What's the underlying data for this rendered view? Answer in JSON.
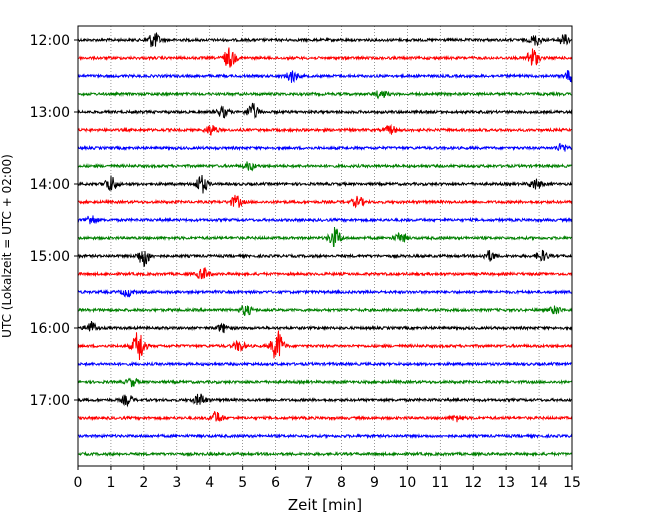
{
  "chart_data": {
    "type": "line",
    "xlabel": "Zeit  [min]",
    "ylabel": "UTC (Lokalzeit = UTC + 02:00)",
    "xlim": [
      0,
      15
    ],
    "x_ticks": [
      "0",
      "1",
      "2",
      "3",
      "4",
      "5",
      "6",
      "7",
      "8",
      "9",
      "10",
      "11",
      "12",
      "13",
      "14",
      "15"
    ],
    "y_tick_labels": [
      "12:00",
      "13:00",
      "14:00",
      "15:00",
      "16:00",
      "17:00"
    ],
    "grid": "vertical dotted at each minute",
    "trace_colors": [
      "#000000",
      "#ff0000",
      "#0000ff",
      "#008000"
    ],
    "traces": [
      {
        "start": "12:00",
        "bursts": [
          [
            2.3,
            0.8
          ],
          [
            13.9,
            0.5
          ],
          [
            14.75,
            0.5
          ]
        ]
      },
      {
        "start": "12:15",
        "bursts": [
          [
            4.6,
            1.0
          ],
          [
            13.8,
            1.0
          ]
        ]
      },
      {
        "start": "12:30",
        "bursts": [
          [
            6.5,
            0.6
          ],
          [
            14.95,
            0.6
          ]
        ]
      },
      {
        "start": "12:45",
        "bursts": [
          [
            9.2,
            0.4
          ]
        ]
      },
      {
        "start": "13:00",
        "bursts": [
          [
            5.3,
            0.8
          ],
          [
            4.4,
            0.5
          ]
        ]
      },
      {
        "start": "13:15",
        "bursts": [
          [
            4.05,
            0.5
          ],
          [
            9.5,
            0.4
          ]
        ]
      },
      {
        "start": "13:30",
        "bursts": [
          [
            14.7,
            0.4
          ]
        ]
      },
      {
        "start": "13:45",
        "bursts": [
          [
            5.2,
            0.4
          ]
        ]
      },
      {
        "start": "14:00",
        "bursts": [
          [
            1.0,
            0.8
          ],
          [
            3.75,
            0.9
          ],
          [
            13.9,
            0.5
          ]
        ]
      },
      {
        "start": "14:15",
        "bursts": [
          [
            4.8,
            0.6
          ],
          [
            8.5,
            0.5
          ]
        ]
      },
      {
        "start": "14:30",
        "bursts": [
          [
            0.4,
            0.5
          ]
        ]
      },
      {
        "start": "14:45",
        "bursts": [
          [
            7.8,
            1.0
          ],
          [
            9.8,
            0.5
          ]
        ]
      },
      {
        "start": "15:00",
        "bursts": [
          [
            2.0,
            1.0
          ],
          [
            12.5,
            0.5
          ],
          [
            14.1,
            0.5
          ]
        ]
      },
      {
        "start": "15:15",
        "bursts": [
          [
            3.8,
            0.6
          ]
        ]
      },
      {
        "start": "15:30",
        "bursts": [
          [
            1.5,
            0.4
          ]
        ]
      },
      {
        "start": "15:45",
        "bursts": [
          [
            5.1,
            0.5
          ],
          [
            14.5,
            0.4
          ]
        ]
      },
      {
        "start": "16:00",
        "bursts": [
          [
            0.4,
            0.6
          ],
          [
            4.4,
            0.4
          ]
        ]
      },
      {
        "start": "16:15",
        "bursts": [
          [
            1.85,
            1.6
          ],
          [
            6.05,
            1.6
          ],
          [
            4.9,
            0.5
          ]
        ]
      },
      {
        "start": "16:30",
        "bursts": []
      },
      {
        "start": "16:45",
        "bursts": [
          [
            1.65,
            0.4
          ]
        ]
      },
      {
        "start": "17:00",
        "bursts": [
          [
            1.5,
            0.5
          ],
          [
            3.7,
            0.6
          ]
        ]
      },
      {
        "start": "17:15",
        "bursts": [
          [
            4.2,
            0.6
          ],
          [
            11.5,
            0.3
          ]
        ]
      },
      {
        "start": "17:30",
        "bursts": []
      },
      {
        "start": "17:45",
        "bursts": []
      }
    ]
  }
}
